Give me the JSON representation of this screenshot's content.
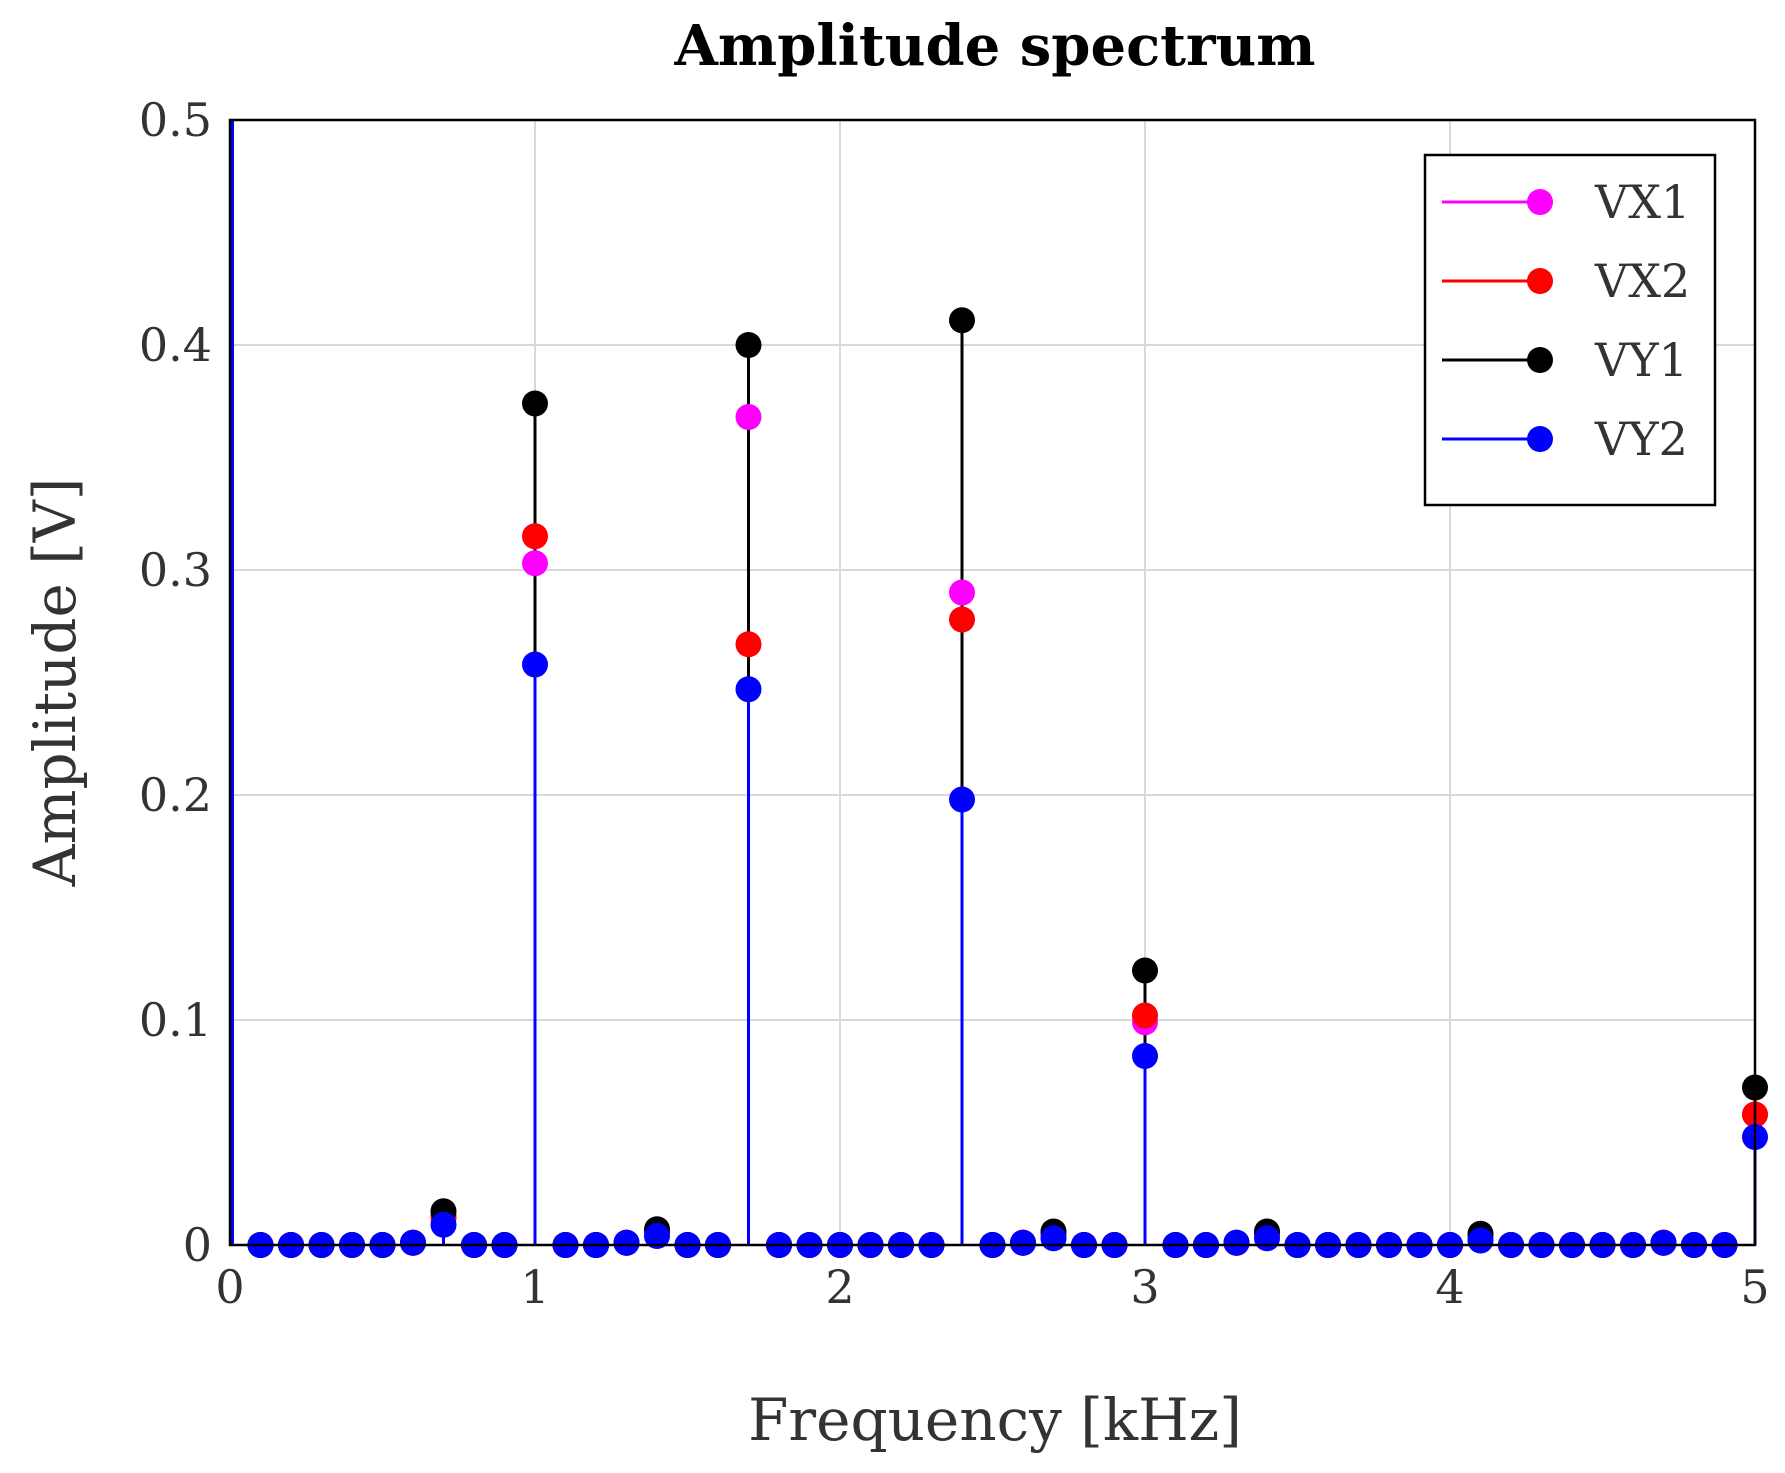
{
  "chart_data": {
    "type": "stem",
    "title": "Amplitude spectrum",
    "xlabel": "Frequency [kHz]",
    "ylabel": "Amplitude [V]",
    "xlim": [
      0,
      5
    ],
    "ylim": [
      0,
      0.5
    ],
    "xticks": [
      0,
      1,
      2,
      3,
      4,
      5
    ],
    "yticks": [
      0,
      0.1,
      0.2,
      0.3,
      0.4,
      0.5
    ],
    "xtick_labels": [
      "0",
      "1",
      "2",
      "3",
      "4",
      "5"
    ],
    "ytick_labels": [
      "0",
      "0.1",
      "0.2",
      "0.3",
      "0.4",
      "0.5"
    ],
    "grid": true,
    "legend_position": "top-right",
    "x": [
      0.1,
      0.2,
      0.3,
      0.4,
      0.5,
      0.6,
      0.7,
      0.8,
      0.9,
      1.0,
      1.1,
      1.2,
      1.3,
      1.4,
      1.5,
      1.6,
      1.7,
      1.8,
      1.9,
      2.0,
      2.1,
      2.2,
      2.3,
      2.4,
      2.5,
      2.6,
      2.7,
      2.8,
      2.9,
      3.0,
      3.1,
      3.2,
      3.3,
      3.4,
      3.5,
      3.6,
      3.7,
      3.8,
      3.9,
      4.0,
      4.1,
      4.2,
      4.3,
      4.4,
      4.5,
      4.6,
      4.7,
      4.8,
      4.9,
      5.0
    ],
    "series": [
      {
        "name": "VX1",
        "color": "#ff00ff",
        "values": [
          0,
          0,
          0,
          0,
          0,
          0.001,
          0.013,
          0,
          0,
          0.303,
          0,
          0,
          0.001,
          0.006,
          0,
          0,
          0.368,
          0,
          0,
          0,
          0,
          0,
          0,
          0.29,
          0,
          0.001,
          0.005,
          0,
          0,
          0.099,
          0,
          0,
          0.001,
          0.005,
          0,
          0,
          0,
          0,
          0,
          0,
          0.004,
          0,
          0,
          0,
          0,
          0,
          0.001,
          0,
          0,
          0.058
        ]
      },
      {
        "name": "VX2",
        "color": "#ff0000",
        "values": [
          0,
          0,
          0,
          0,
          0,
          0.001,
          0.012,
          0,
          0,
          0.315,
          0,
          0,
          0.001,
          0.006,
          0,
          0,
          0.267,
          0,
          0,
          0,
          0,
          0,
          0,
          0.278,
          0,
          0.001,
          0.005,
          0,
          0,
          0.102,
          0,
          0,
          0.001,
          0.005,
          0,
          0,
          0,
          0,
          0,
          0,
          0.004,
          0,
          0,
          0,
          0,
          0,
          0.001,
          0,
          0,
          0.058
        ]
      },
      {
        "name": "VY1",
        "color": "#000000",
        "values": [
          0,
          0,
          0,
          0,
          0,
          0.001,
          0.015,
          0,
          0,
          0.374,
          0,
          0,
          0.001,
          0.007,
          0,
          0,
          0.4,
          0,
          0,
          0,
          0,
          0,
          0,
          0.411,
          0,
          0.001,
          0.006,
          0,
          0,
          0.122,
          0,
          0,
          0.001,
          0.006,
          0,
          0,
          0,
          0,
          0,
          0,
          0.005,
          0,
          0,
          0,
          0,
          0,
          0.001,
          0,
          0,
          0.07
        ]
      },
      {
        "name": "VY2",
        "color": "#0000ff",
        "values": [
          0,
          0,
          0,
          0,
          0,
          0.001,
          0.009,
          0,
          0,
          0.258,
          0,
          0,
          0.001,
          0.004,
          0,
          0,
          0.247,
          0,
          0,
          0,
          0,
          0,
          0,
          0.198,
          0,
          0.001,
          0.003,
          0,
          0,
          0.084,
          0,
          0,
          0.001,
          0.003,
          0,
          0,
          0,
          0,
          0,
          0,
          0.002,
          0,
          0,
          0,
          0,
          0,
          0.001,
          0,
          0,
          0.048
        ]
      }
    ],
    "annotations": [
      "blue vertical line at x = 0 spanning full y range"
    ]
  }
}
